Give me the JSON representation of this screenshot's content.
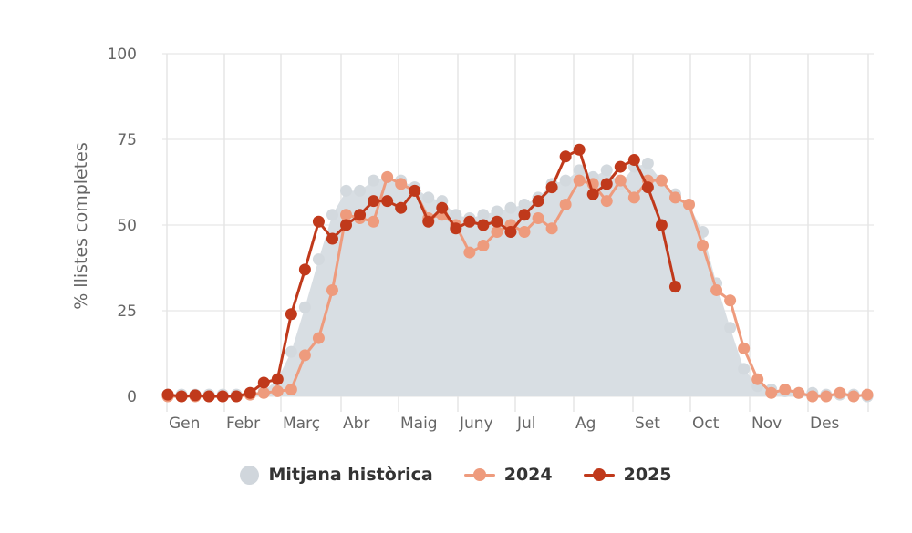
{
  "chart_data": {
    "type": "line",
    "title": "",
    "xlabel": "",
    "ylabel": "% llistes completes",
    "ylim": [
      0,
      100
    ],
    "yticks": [
      0,
      25,
      50,
      75,
      100
    ],
    "grid": true,
    "legend_position": "bottom",
    "month_labels": [
      "Gen",
      "Febr",
      "Març",
      "Abr",
      "Maig",
      "Juny",
      "Jul",
      "Ag",
      "Set",
      "Oct",
      "Nov",
      "Des"
    ],
    "x_unit": "week",
    "x": [
      1,
      2,
      3,
      4,
      5,
      6,
      7,
      8,
      9,
      10,
      11,
      12,
      13,
      14,
      15,
      16,
      17,
      18,
      19,
      20,
      21,
      22,
      23,
      24,
      25,
      26,
      27,
      28,
      29,
      30,
      31,
      32,
      33,
      34,
      35,
      36,
      37,
      38,
      39,
      40,
      41,
      42,
      43,
      44,
      45,
      46,
      47,
      48,
      49,
      50,
      51,
      52
    ],
    "series": [
      {
        "name": "Mitjana històrica",
        "type": "area",
        "color": "#d3d9de",
        "values": [
          0.5,
          0.5,
          0.5,
          0.5,
          0.5,
          0.5,
          1,
          1.5,
          5,
          13,
          26,
          40,
          53,
          60,
          60,
          63,
          64,
          63,
          61,
          58,
          57,
          53,
          52,
          53,
          54,
          55,
          56,
          58,
          62,
          63,
          66,
          64,
          66,
          62,
          67,
          68,
          63,
          59,
          56,
          48,
          33,
          20,
          8,
          3,
          2,
          1.5,
          1,
          1,
          0.5,
          0.5,
          0.5,
          0
        ]
      },
      {
        "name": "2024",
        "type": "line",
        "color": "#ee9b7d",
        "values": [
          0,
          0,
          0,
          0,
          0,
          0,
          0.5,
          1,
          1.5,
          2,
          12,
          17,
          31,
          53,
          52,
          51,
          64,
          62,
          60,
          52,
          53,
          50,
          42,
          44,
          48,
          50,
          48,
          52,
          49,
          56,
          63,
          62,
          57,
          63,
          58,
          63,
          63,
          58,
          56,
          44,
          31,
          28,
          14,
          5,
          1,
          2,
          1,
          0,
          0,
          1,
          0,
          0.5
        ]
      },
      {
        "name": "2025",
        "type": "line",
        "color": "#c0391b",
        "values": [
          0.5,
          0,
          0.3,
          0,
          0,
          0,
          1,
          4,
          5,
          24,
          37,
          51,
          46,
          50,
          53,
          57,
          57,
          55,
          60,
          51,
          55,
          49,
          51,
          50,
          51,
          48,
          53,
          57,
          61,
          70,
          72,
          59,
          62,
          67,
          69,
          61,
          50,
          32
        ]
      }
    ]
  },
  "legend": {
    "items": [
      {
        "label": "Mitjana històrica",
        "color": "#d0d6dc"
      },
      {
        "label": "2024",
        "color": "#ee9b7d"
      },
      {
        "label": "2025",
        "color": "#c0391b"
      }
    ]
  },
  "axis": {
    "y_title": "% llistes completes",
    "y_ticks": [
      "0",
      "25",
      "50",
      "75",
      "100"
    ],
    "x_ticks": [
      "Gen",
      "Febr",
      "Març",
      "Abr",
      "Maig",
      "Juny",
      "Jul",
      "Ag",
      "Set",
      "Oct",
      "Nov",
      "Des"
    ]
  }
}
